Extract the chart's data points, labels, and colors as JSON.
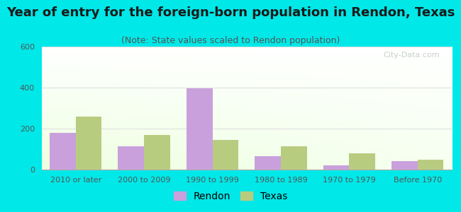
{
  "title": "Year of entry for the foreign-born population in Rendon, Texas",
  "subtitle": "(Note: State values scaled to Rendon population)",
  "categories": [
    "2010 or later",
    "2000 to 2009",
    "1990 to 1999",
    "1980 to 1989",
    "1970 to 1979",
    "Before 1970"
  ],
  "rendon_values": [
    180,
    115,
    395,
    65,
    22,
    40
  ],
  "texas_values": [
    258,
    170,
    145,
    115,
    78,
    50
  ],
  "rendon_color": "#c9a0dc",
  "texas_color": "#b8cc80",
  "background_color": "#00e8e8",
  "ylim": [
    0,
    600
  ],
  "yticks": [
    0,
    200,
    400,
    600
  ],
  "bar_width": 0.38,
  "title_fontsize": 13,
  "subtitle_fontsize": 9,
  "tick_fontsize": 8,
  "legend_fontsize": 10,
  "title_color": "#1a1a1a",
  "subtitle_color": "#555555",
  "tick_color": "#555555",
  "grid_color": "#dddddd",
  "watermark_text": "City-Data.com",
  "watermark_color": "#c0c8c0"
}
